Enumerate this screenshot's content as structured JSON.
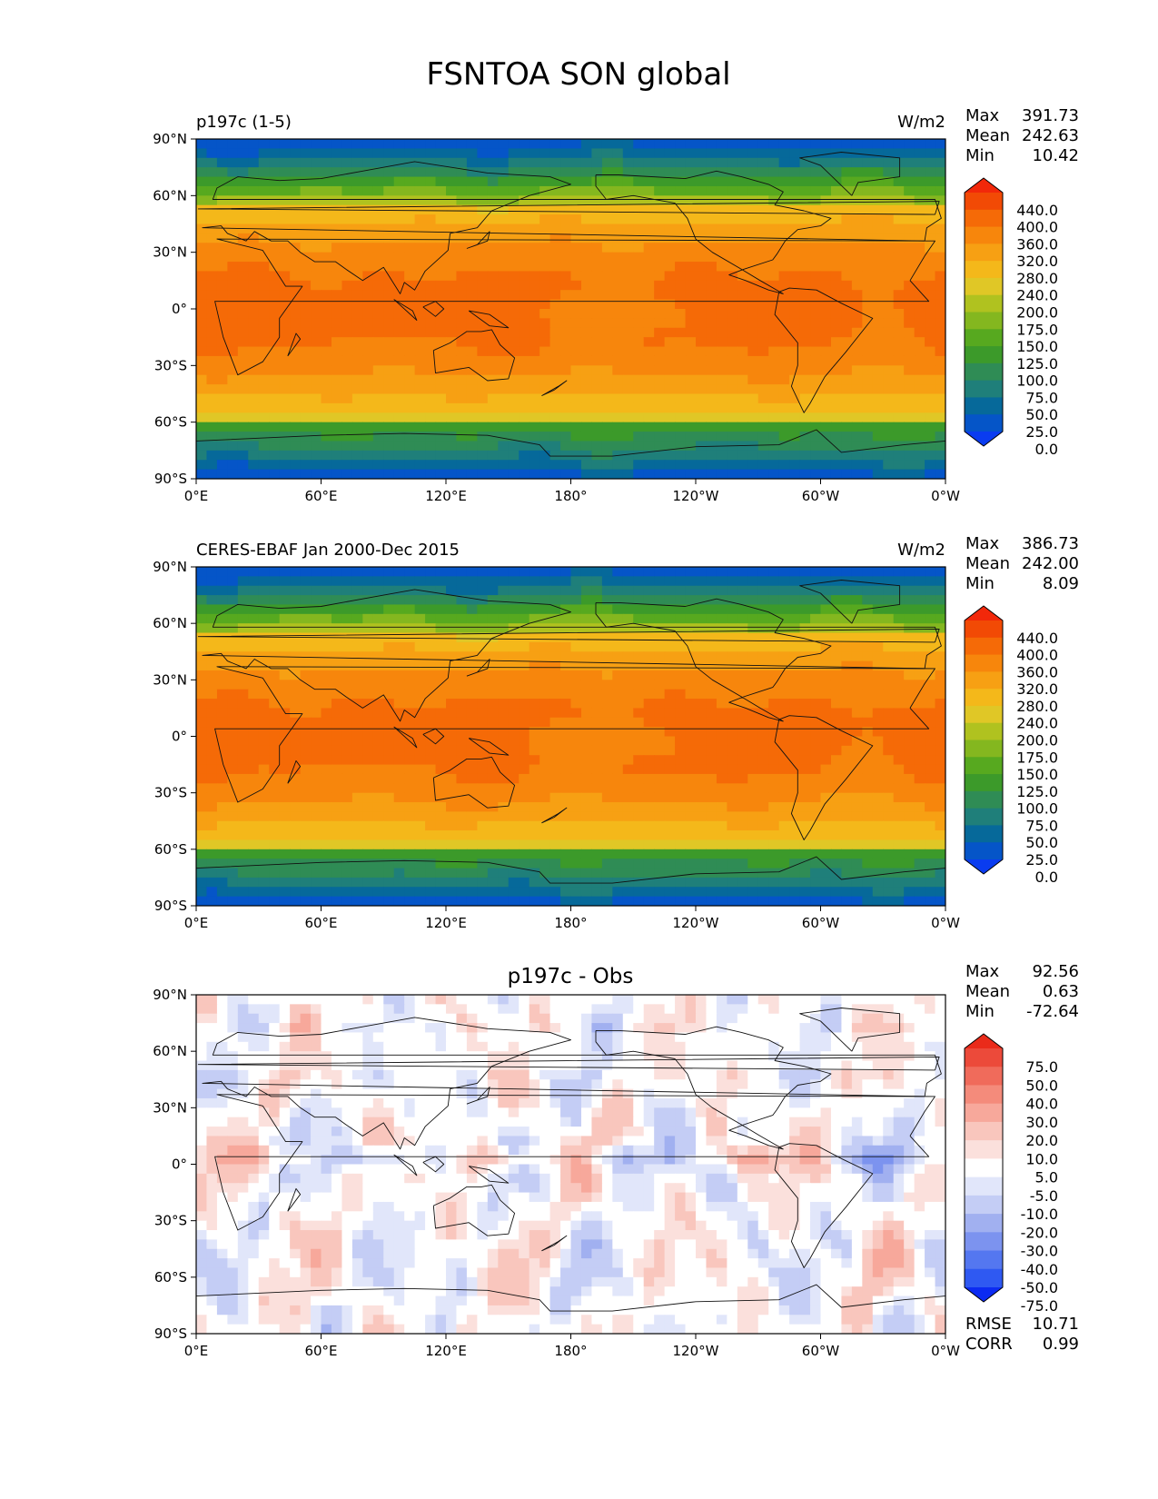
{
  "figure": {
    "title": "FSNTOA SON global"
  },
  "panels": [
    {
      "id": "test",
      "left_title": "p197c (1-5)",
      "center_title": "",
      "units": "W/m2",
      "stats": [
        {
          "label": "Max",
          "value": "391.73"
        },
        {
          "label": "Mean",
          "value": "242.63"
        },
        {
          "label": "Min",
          "value": "10.42"
        }
      ],
      "colorbar_labels": [
        "440.0",
        "400.0",
        "360.0",
        "320.0",
        "280.0",
        "240.0",
        "200.0",
        "175.0",
        "150.0",
        "125.0",
        "100.0",
        "75.0",
        "50.0",
        "25.0",
        "0.0"
      ],
      "extra_stats": []
    },
    {
      "id": "ref",
      "left_title": "CERES-EBAF Jan 2000-Dec 2015",
      "center_title": "",
      "units": "W/m2",
      "stats": [
        {
          "label": "Max",
          "value": "386.73"
        },
        {
          "label": "Mean",
          "value": "242.00"
        },
        {
          "label": "Min",
          "value": "8.09"
        }
      ],
      "colorbar_labels": [
        "440.0",
        "400.0",
        "360.0",
        "320.0",
        "280.0",
        "240.0",
        "200.0",
        "175.0",
        "150.0",
        "125.0",
        "100.0",
        "75.0",
        "50.0",
        "25.0",
        "0.0"
      ],
      "extra_stats": []
    },
    {
      "id": "diff",
      "left_title": "",
      "center_title": "p197c - Obs",
      "units": "",
      "stats": [
        {
          "label": "Max",
          "value": "92.56"
        },
        {
          "label": "Mean",
          "value": "0.63"
        },
        {
          "label": "Min",
          "value": "-72.64"
        }
      ],
      "colorbar_labels": [
        "75.0",
        "50.0",
        "40.0",
        "30.0",
        "20.0",
        "10.0",
        "5.0",
        "-5.0",
        "-10.0",
        "-20.0",
        "-30.0",
        "-40.0",
        "-50.0",
        "-75.0"
      ],
      "extra_stats": [
        {
          "label": "RMSE",
          "value": "10.71"
        },
        {
          "label": "CORR",
          "value": "0.99"
        }
      ]
    }
  ],
  "chart_data": {
    "type": "heatmap",
    "x_ticks": [
      "0°E",
      "60°E",
      "120°E",
      "180°",
      "120°W",
      "60°W",
      "0°W"
    ],
    "y_ticks": [
      "90°N",
      "60°N",
      "30°N",
      "0°",
      "30°S",
      "60°S",
      "90°S"
    ],
    "x_range_deg_east": [
      0,
      360
    ],
    "y_range_deg_lat": [
      -90,
      90
    ],
    "levels_field": [
      0,
      25,
      50,
      75,
      100,
      125,
      150,
      175,
      200,
      240,
      280,
      320,
      360,
      400,
      440
    ],
    "levels_diff": [
      -75,
      -50,
      -40,
      -30,
      -20,
      -10,
      -5,
      5,
      10,
      20,
      30,
      40,
      50,
      75
    ],
    "colors": {
      "field": [
        "#0a3cf0",
        "#0555c8",
        "#06699a",
        "#1f7f7a",
        "#2f8c55",
        "#3c9a2a",
        "#57a91f",
        "#84b71f",
        "#b0c21f",
        "#e0c726",
        "#f4b81a",
        "#f7a013",
        "#f7860c",
        "#f56a07",
        "#f24a05",
        "#f2280a"
      ],
      "diff": [
        "#0c2bf2",
        "#2f59f2",
        "#5477f0",
        "#7c93ef",
        "#a1b0f0",
        "#c4cdf5",
        "#e1e6fa",
        "#ffffff",
        "#fbe0dc",
        "#f9c6bd",
        "#f7a89b",
        "#f48b7b",
        "#f06b5b",
        "#ec4a3a",
        "#ea2b1a"
      ]
    }
  }
}
